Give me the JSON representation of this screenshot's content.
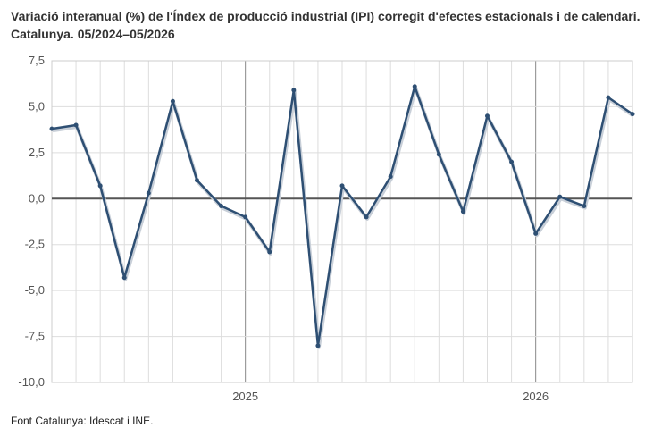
{
  "title_line1": "Variació interanual (%) de l'Índex de producció industrial (IPI) corregit d'efectes estacionals i de calendari.",
  "title_line2": "Catalunya. 05/2024–05/2026",
  "source": "Font Catalunya: Idescat i INE.",
  "chart_data": {
    "type": "line",
    "title": "Variació interanual (%) de l'Índex de producció industrial (IPI) corregit d'efectes estacionals i de calendari. Catalunya. 05/2024–05/2026",
    "xlabel": "",
    "ylabel": "",
    "x": [
      "2024-05",
      "2024-06",
      "2024-07",
      "2024-08",
      "2024-09",
      "2024-10",
      "2024-11",
      "2024-12",
      "2025-01",
      "2025-02",
      "2025-03",
      "2025-04",
      "2025-05",
      "2025-06",
      "2025-07",
      "2025-08",
      "2025-09",
      "2025-10",
      "2025-11",
      "2025-12",
      "2026-01",
      "2026-02",
      "2026-03",
      "2026-04",
      "2026-05"
    ],
    "series": [
      {
        "values": [
          3.8,
          4.0,
          0.7,
          -4.3,
          0.3,
          5.3,
          1.0,
          -0.4,
          -1.0,
          -2.9,
          5.9,
          -8.0,
          0.7,
          -1.0,
          1.2,
          6.1,
          2.4,
          -0.7,
          4.5,
          2.0,
          -1.9,
          0.1,
          -0.4,
          5.5,
          4.6
        ],
        "color": "#2e4f73"
      }
    ],
    "ylim": [
      -10,
      7.5
    ],
    "yticks": [
      7.5,
      5,
      2.5,
      0,
      -2.5,
      -5,
      -7.5,
      -10
    ],
    "ytick_labels": [
      "7,5",
      "5,0",
      "2,5",
      "0,0",
      "-2,5",
      "-5,0",
      "-7,5",
      "-10,0"
    ],
    "xtick_labels": [
      {
        "at": "2025-01",
        "label": "2025"
      },
      {
        "at": "2026-01",
        "label": "2026"
      }
    ],
    "grid": true,
    "legend": "none"
  }
}
